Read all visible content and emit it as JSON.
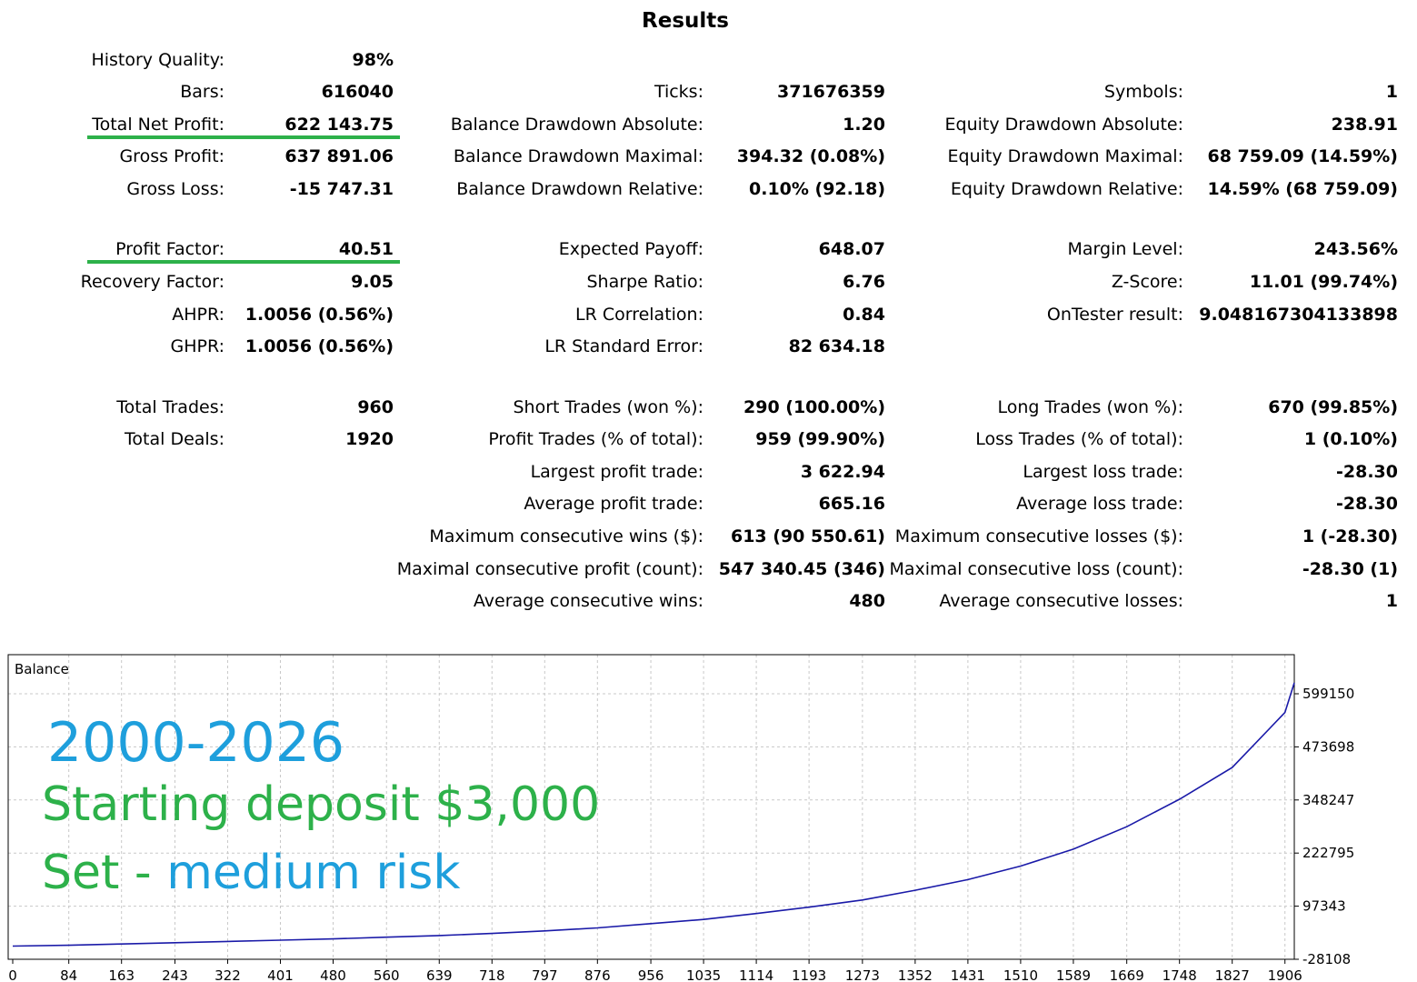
{
  "title": "Results",
  "stats": {
    "col1": [
      {
        "label": "History Quality:",
        "value": "98%"
      },
      {
        "label": "Bars:",
        "value": "616040"
      },
      {
        "label": "Total Net Profit:",
        "value": "622 143.75"
      },
      {
        "label": "Gross Profit:",
        "value": "637 891.06"
      },
      {
        "label": "Gross Loss:",
        "value": "-15 747.31"
      },
      {
        "label": "Profit Factor:",
        "value": "40.51"
      },
      {
        "label": "Recovery Factor:",
        "value": "9.05"
      },
      {
        "label": "AHPR:",
        "value": "1.0056 (0.56%)"
      },
      {
        "label": "GHPR:",
        "value": "1.0056 (0.56%)"
      },
      {
        "label": "Total Trades:",
        "value": "960"
      },
      {
        "label": "Total Deals:",
        "value": "1920"
      }
    ],
    "col2": [
      {
        "label": "Ticks:",
        "value": "371676359"
      },
      {
        "label": "Balance Drawdown Absolute:",
        "value": "1.20"
      },
      {
        "label": "Balance Drawdown Maximal:",
        "value": "394.32 (0.08%)"
      },
      {
        "label": "Balance Drawdown Relative:",
        "value": "0.10% (92.18)"
      },
      {
        "label": "Expected Payoff:",
        "value": "648.07"
      },
      {
        "label": "Sharpe Ratio:",
        "value": "6.76"
      },
      {
        "label": "LR Correlation:",
        "value": "0.84"
      },
      {
        "label": "LR Standard Error:",
        "value": "82 634.18"
      },
      {
        "label": "Short Trades (won %):",
        "value": "290 (100.00%)"
      },
      {
        "label": "Profit Trades (% of total):",
        "value": "959 (99.90%)"
      },
      {
        "label": "Largest profit trade:",
        "value": "3 622.94"
      },
      {
        "label": "Average profit trade:",
        "value": "665.16"
      },
      {
        "label": "Maximum consecutive wins ($):",
        "value": "613 (90 550.61)"
      },
      {
        "label": "Maximal consecutive profit (count):",
        "value": "547 340.45 (346)"
      },
      {
        "label": "Average consecutive wins:",
        "value": "480"
      }
    ],
    "col3": [
      {
        "label": "Symbols:",
        "value": "1"
      },
      {
        "label": "Equity Drawdown Absolute:",
        "value": "238.91"
      },
      {
        "label": "Equity Drawdown Maximal:",
        "value": "68 759.09 (14.59%)"
      },
      {
        "label": "Equity Drawdown Relative:",
        "value": "14.59% (68 759.09)"
      },
      {
        "label": "Margin Level:",
        "value": "243.56%"
      },
      {
        "label": "Z-Score:",
        "value": "11.01 (99.74%)"
      },
      {
        "label": "OnTester result:",
        "value": "9.048167304133898"
      },
      {
        "label": "Long Trades (won %):",
        "value": "670 (99.85%)"
      },
      {
        "label": "Loss Trades (% of total):",
        "value": "1 (0.10%)"
      },
      {
        "label": "Largest loss trade:",
        "value": "-28.30"
      },
      {
        "label": "Average loss trade:",
        "value": "-28.30"
      },
      {
        "label": "Maximum consecutive losses ($):",
        "value": "1 (-28.30)"
      },
      {
        "label": "Maximal consecutive loss (count):",
        "value": "-28.30 (1)"
      },
      {
        "label": "Average consecutive losses:",
        "value": "1"
      }
    ]
  },
  "overlay": {
    "years": "2000-2026",
    "deposit": "Starting deposit $3,000",
    "set_prefix": "Set - ",
    "set_risk": "medium risk"
  },
  "colors": {
    "underline": "#2db14a",
    "line": "#1a1aa8",
    "overlay_blue": "#1e9fdc",
    "overlay_green": "#2db14a",
    "grid": "#c8c8c8"
  },
  "chart_data": {
    "type": "line",
    "title": "Balance",
    "x_ticks": [
      "0",
      "84",
      "163",
      "243",
      "322",
      "401",
      "480",
      "560",
      "639",
      "718",
      "797",
      "876",
      "956",
      "1035",
      "1114",
      "1193",
      "1273",
      "1352",
      "1431",
      "1510",
      "1589",
      "1669",
      "1748",
      "1827",
      "1906"
    ],
    "y_ticks": [
      "599150",
      "473698",
      "348247",
      "222795",
      "97343",
      "-28108"
    ],
    "xlim": [
      0,
      1920
    ],
    "ylim": [
      -28108,
      625143
    ],
    "grid": true,
    "series": [
      {
        "x": [
          0,
          84,
          163,
          243,
          322,
          401,
          480,
          560,
          639,
          718,
          797,
          876,
          956,
          1035,
          1114,
          1193,
          1273,
          1352,
          1431,
          1510,
          1589,
          1669,
          1748,
          1827,
          1906,
          1920
        ],
        "y": [
          3000,
          5000,
          8000,
          11000,
          14000,
          17000,
          20000,
          24000,
          28000,
          33000,
          39000,
          46000,
          56000,
          66000,
          80000,
          95000,
          112000,
          135000,
          160000,
          192000,
          232000,
          285000,
          350000,
          425000,
          555000,
          625143
        ]
      }
    ]
  }
}
